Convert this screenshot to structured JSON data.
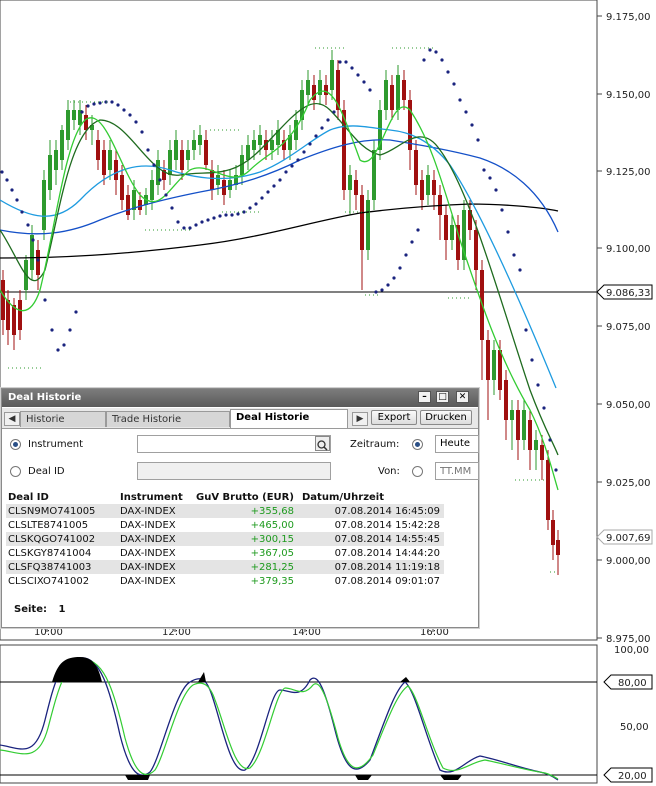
{
  "price_axis": {
    "labels": [
      "9.175,00",
      "9.150,00",
      "9.125,00",
      "9.100,00",
      "9.075,00",
      "9.050,00",
      "9.025,00",
      "9.000,00",
      "8.975,00"
    ],
    "marker_current": "9.086,33",
    "marker_last": "9.007,69"
  },
  "time_axis": {
    "labels": [
      "10:00",
      "12:00",
      "14:00",
      "16:00"
    ]
  },
  "oscillator_axis": {
    "labels": [
      "100,00",
      "80,00",
      "50,00",
      "20,00"
    ]
  },
  "colors": {
    "up_candle": "#2e9a2e",
    "down_candle": "#a01010",
    "sar_dots": "#1a237e",
    "sma_dark_green": "#1f6b1f",
    "sma_light_green": "#33cc33",
    "sma_light_blue": "#1e9be0",
    "sma_blue": "#1450c8",
    "sma_black": "#000000"
  },
  "panel": {
    "title": "Deal Historie",
    "tabs": [
      {
        "label": "Historie"
      },
      {
        "label": "Trade Historie"
      },
      {
        "label": "Deal Historie"
      }
    ],
    "export_label": "Export",
    "print_label": "Drucken",
    "instrument_label": "Instrument",
    "dealid_label": "Deal ID",
    "zeitraum_label": "Zeitraum:",
    "zeitraum_value": "Heute",
    "von_label": "Von:",
    "von_placeholder": "TT.MM",
    "table": {
      "headers": [
        "Deal ID",
        "Instrument",
        "GuV Brutto (EUR)",
        "Datum/Uhrzeit"
      ],
      "rows": [
        [
          "CLSN9MO741005",
          "DAX-INDEX",
          "+355,68",
          "07.08.2014 16:45:09"
        ],
        [
          "CLSLTE8741005",
          "DAX-INDEX",
          "+465,00",
          "07.08.2014 15:42:28"
        ],
        [
          "CLSKQGO741002",
          "DAX-INDEX",
          "+300,15",
          "07.08.2014 14:55:45"
        ],
        [
          "CLSKGY8741004",
          "DAX-INDEX",
          "+367,05",
          "07.08.2014 14:44:20"
        ],
        [
          "CLSFQ38741003",
          "DAX-INDEX",
          "+281,25",
          "07.08.2014 11:19:18"
        ],
        [
          "CLSCIXO741002",
          "DAX-INDEX",
          "+379,35",
          "07.08.2014 09:01:07"
        ]
      ]
    },
    "page_label": "Seite:",
    "page_value": "1"
  }
}
